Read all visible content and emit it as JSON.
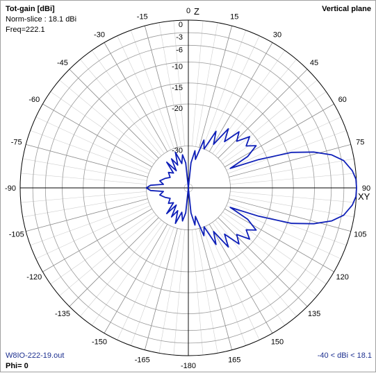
{
  "header": {
    "title": "Tot-gain [dBi]",
    "norm_slice": "Norm-slice : 18.1 dBi",
    "freq": "Freq=222.1",
    "plane": "Vertical plane"
  },
  "footer": {
    "file": "W8IO-222-19.out",
    "phi": "Phi= 0",
    "range": "-40 < dBi < 18.1"
  },
  "axes": {
    "top": "Z",
    "right": "XY"
  },
  "colors": {
    "pattern": "#0e1fb8",
    "grid": "#9a9a9a",
    "text_blue": "#1c2f8f"
  },
  "chart_data": {
    "type": "polar",
    "radial_scale": "dB",
    "radial_range": [
      -40,
      0
    ],
    "radial_ticks": [
      "0",
      "-3",
      "-6",
      "-10",
      "-15",
      "-20",
      "-30"
    ],
    "radial_tick_values": [
      0,
      -3,
      -6,
      -10,
      -15,
      -20,
      -30
    ],
    "angle_labels": [
      "0",
      "15",
      "30",
      "45",
      "60",
      "75",
      "90",
      "105",
      "120",
      "135",
      "150",
      "165",
      "-180",
      "-165",
      "-150",
      "-135",
      "-120",
      "-105",
      "-90",
      "-75",
      "-60",
      "-45",
      "-30",
      "-15"
    ],
    "angle_values": [
      0,
      15,
      30,
      45,
      60,
      75,
      90,
      105,
      120,
      135,
      150,
      165,
      180,
      195,
      210,
      225,
      240,
      255,
      270,
      285,
      300,
      315,
      330,
      345
    ],
    "series": [
      {
        "points": [
          [
            0,
            -40
          ],
          [
            6,
            -34
          ],
          [
            10,
            -31
          ],
          [
            14,
            -33
          ],
          [
            18,
            -28
          ],
          [
            22,
            -30
          ],
          [
            26,
            -25
          ],
          [
            30,
            -28
          ],
          [
            34,
            -23
          ],
          [
            38,
            -26
          ],
          [
            42,
            -22
          ],
          [
            46,
            -24
          ],
          [
            50,
            -21
          ],
          [
            54,
            -23
          ],
          [
            58,
            -21
          ],
          [
            62,
            -24
          ],
          [
            65,
            -29
          ],
          [
            68,
            -22
          ],
          [
            71,
            -14
          ],
          [
            74,
            -9
          ],
          [
            77,
            -5
          ],
          [
            80,
            -2.5
          ],
          [
            84,
            -0.8
          ],
          [
            87,
            -0.1
          ],
          [
            90,
            0
          ],
          [
            93,
            -0.1
          ],
          [
            96,
            -0.8
          ],
          [
            100,
            -2.5
          ],
          [
            103,
            -5
          ],
          [
            106,
            -9
          ],
          [
            109,
            -14
          ],
          [
            112,
            -22
          ],
          [
            115,
            -29
          ],
          [
            118,
            -24
          ],
          [
            122,
            -21
          ],
          [
            126,
            -23
          ],
          [
            130,
            -21
          ],
          [
            134,
            -24
          ],
          [
            138,
            -22
          ],
          [
            142,
            -26
          ],
          [
            146,
            -23
          ],
          [
            150,
            -28
          ],
          [
            154,
            -25
          ],
          [
            158,
            -30
          ],
          [
            162,
            -28
          ],
          [
            166,
            -33
          ],
          [
            170,
            -31
          ],
          [
            174,
            -34
          ],
          [
            180,
            -40
          ],
          [
            186,
            -34
          ],
          [
            190,
            -32
          ],
          [
            195,
            -34
          ],
          [
            200,
            -31
          ],
          [
            205,
            -34
          ],
          [
            210,
            -32
          ],
          [
            215,
            -35
          ],
          [
            220,
            -32
          ],
          [
            225,
            -35
          ],
          [
            232,
            -34
          ],
          [
            240,
            -35
          ],
          [
            248,
            -34
          ],
          [
            256,
            -33
          ],
          [
            262,
            -34
          ],
          [
            266,
            -31
          ],
          [
            270,
            -30
          ],
          [
            274,
            -31
          ],
          [
            278,
            -34
          ],
          [
            284,
            -33
          ],
          [
            292,
            -34
          ],
          [
            300,
            -35
          ],
          [
            308,
            -34
          ],
          [
            315,
            -35
          ],
          [
            320,
            -32
          ],
          [
            325,
            -35
          ],
          [
            330,
            -32
          ],
          [
            335,
            -34
          ],
          [
            340,
            -31
          ],
          [
            345,
            -34
          ],
          [
            350,
            -32
          ],
          [
            354,
            -34
          ],
          [
            360,
            -40
          ]
        ]
      }
    ]
  }
}
